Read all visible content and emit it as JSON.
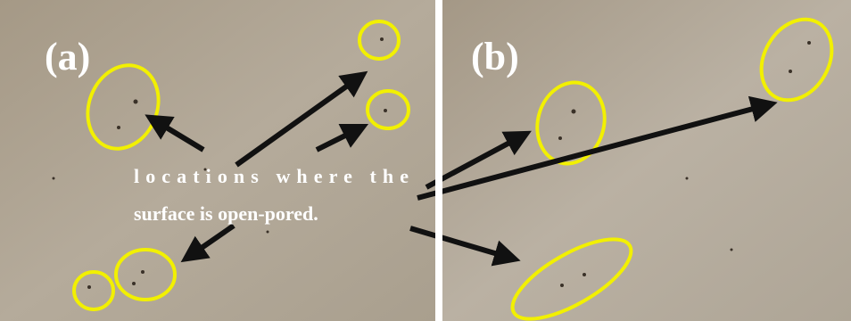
{
  "panels": [
    {
      "label": "(a)"
    },
    {
      "label": "(b)"
    }
  ],
  "annotation": {
    "lines": [
      "locations where the",
      "surface is open-pored."
    ]
  }
}
